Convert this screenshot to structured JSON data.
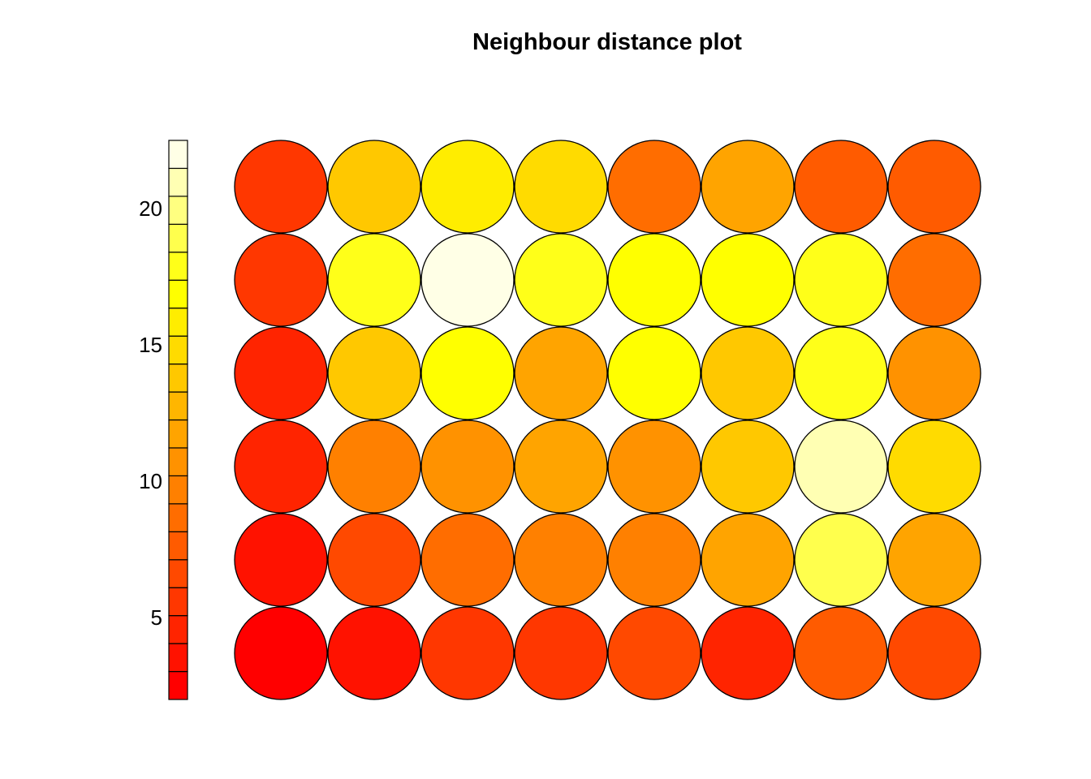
{
  "chart_data": {
    "type": "heatmap",
    "subtype": "SOM neighbour distance map",
    "title": "Neighbour distance plot",
    "rows": 6,
    "cols": 8,
    "grid": false,
    "legend": "left colour bar",
    "colorbar": {
      "min": 2,
      "max": 22.5,
      "ticks": [
        5,
        10,
        15,
        20
      ],
      "tick_labels": [
        "5",
        "10",
        "15",
        "20"
      ],
      "bins": 20,
      "palette": "heat.colors"
    },
    "values": [
      [
        2.6,
        3.7,
        5.4,
        5.3,
        6.3,
        4.3,
        7.4,
        6.6
      ],
      [
        3.7,
        6.7,
        8.4,
        9.5,
        9.5,
        11.3,
        18.5,
        12.2
      ],
      [
        4.3,
        9.6,
        10.5,
        12.2,
        10.9,
        13.7,
        21.0,
        14.5
      ],
      [
        4.3,
        13.6,
        16.5,
        11.5,
        16.5,
        13.6,
        18.2,
        10.7
      ],
      [
        5.3,
        18.1,
        22.3,
        18.4,
        16.6,
        16.4,
        18.0,
        8.2
      ],
      [
        5.4,
        13.7,
        16.3,
        15.2,
        8.3,
        12.1,
        7.9,
        7.3
      ]
    ]
  }
}
